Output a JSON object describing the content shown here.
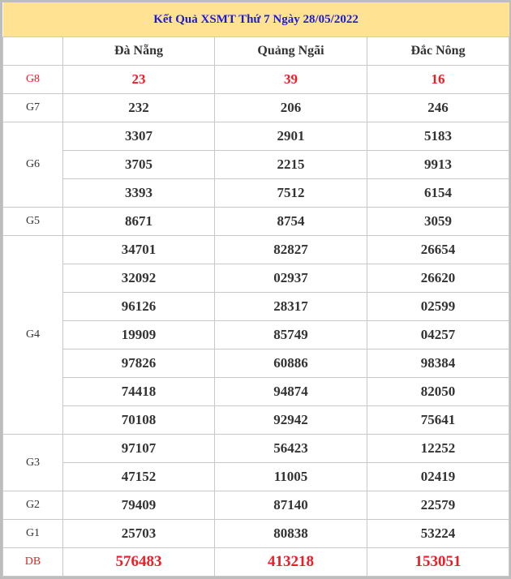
{
  "title": "Kết Quả XSMT Thứ 7 Ngày 28/05/2022",
  "columns": [
    "Đà Nẵng",
    "Quảng Ngãi",
    "Đắc Nông"
  ],
  "accent_color": "#ee1c25",
  "header_bg": "#ffe393",
  "prizes": [
    {
      "label": "G8",
      "highlight": true,
      "rows": [
        [
          "23",
          "39",
          "16"
        ]
      ]
    },
    {
      "label": "G7",
      "rows": [
        [
          "232",
          "206",
          "246"
        ]
      ]
    },
    {
      "label": "G6",
      "rows": [
        [
          "3307",
          "2901",
          "5183"
        ],
        [
          "3705",
          "2215",
          "9913"
        ],
        [
          "3393",
          "7512",
          "6154"
        ]
      ]
    },
    {
      "label": "G5",
      "rows": [
        [
          "8671",
          "8754",
          "3059"
        ]
      ]
    },
    {
      "label": "G4",
      "rows": [
        [
          "34701",
          "82827",
          "26654"
        ],
        [
          "32092",
          "02937",
          "26620"
        ],
        [
          "96126",
          "28317",
          "02599"
        ],
        [
          "19909",
          "85749",
          "04257"
        ],
        [
          "97826",
          "60886",
          "98384"
        ],
        [
          "74418",
          "94874",
          "82050"
        ],
        [
          "70108",
          "92942",
          "75641"
        ]
      ]
    },
    {
      "label": "G3",
      "rows": [
        [
          "97107",
          "56423",
          "12252"
        ],
        [
          "47152",
          "11005",
          "02419"
        ]
      ]
    },
    {
      "label": "G2",
      "rows": [
        [
          "79409",
          "87140",
          "22579"
        ]
      ]
    },
    {
      "label": "G1",
      "rows": [
        [
          "25703",
          "80838",
          "53224"
        ]
      ]
    },
    {
      "label": "DB",
      "highlight": true,
      "big": true,
      "rows": [
        [
          "576483",
          "413218",
          "153051"
        ]
      ]
    }
  ]
}
